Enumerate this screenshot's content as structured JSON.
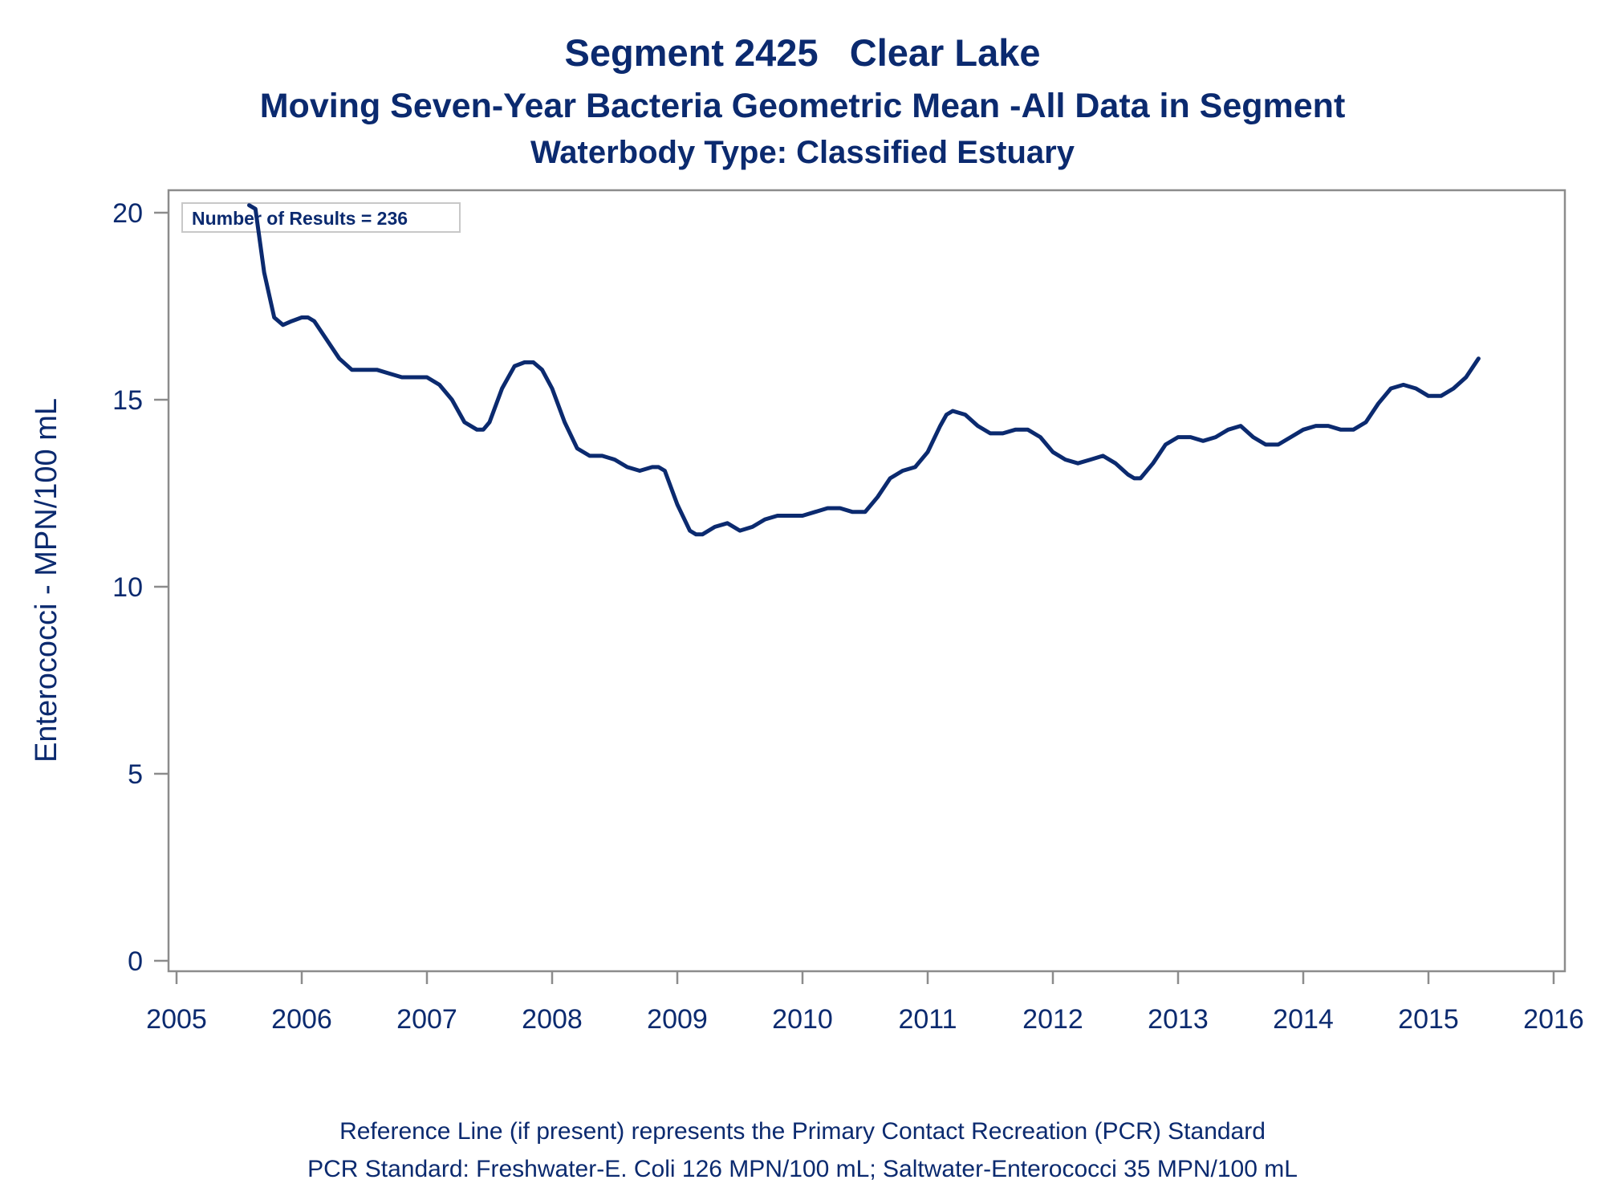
{
  "titles": {
    "line1": "Segment 2425   Clear Lake",
    "line2": "Moving Seven-Year Bacteria Geometric Mean -All Data in Segment",
    "line3": "Waterbody Type: Classified Estuary"
  },
  "annotation": "Number of Results = 236",
  "footnotes": {
    "line1": "Reference Line (if present) represents the Primary Contact Recreation (PCR) Standard",
    "line2": "PCR Standard: Freshwater-E. Coli 126 MPN/100 mL; Saltwater-Enterococci 35 MPN/100 mL"
  },
  "colors": {
    "line": "#0b2a6f",
    "axis": "#8c8c8c",
    "text": "#0b2a6f"
  },
  "chart_data": {
    "type": "line",
    "title": "Segment 2425   Clear Lake",
    "subtitle": "Moving Seven-Year Bacteria Geometric Mean -All Data in Segment",
    "xlabel": "",
    "ylabel": "Enterococci - MPN/100 mL",
    "xlim": [
      2005,
      2016
    ],
    "ylim": [
      0,
      20
    ],
    "x_ticks": [
      "2005",
      "2006",
      "2007",
      "2008",
      "2009",
      "2010",
      "2011",
      "2012",
      "2013",
      "2014",
      "2015",
      "2016"
    ],
    "y_ticks": [
      "0",
      "5",
      "10",
      "15",
      "20"
    ],
    "grid": false,
    "series": [
      {
        "x": [
          2005.58,
          2005.63,
          2005.7,
          2005.78,
          2005.85,
          2005.92,
          2006.0,
          2006.05,
          2006.1,
          2006.2,
          2006.3,
          2006.4,
          2006.5,
          2006.6,
          2006.7,
          2006.8,
          2006.9,
          2007.0,
          2007.1,
          2007.2,
          2007.3,
          2007.4,
          2007.45,
          2007.5,
          2007.6,
          2007.7,
          2007.78,
          2007.85,
          2007.92,
          2008.0,
          2008.1,
          2008.2,
          2008.3,
          2008.4,
          2008.5,
          2008.6,
          2008.7,
          2008.8,
          2008.85,
          2008.9,
          2009.0,
          2009.1,
          2009.15,
          2009.2,
          2009.3,
          2009.4,
          2009.5,
          2009.6,
          2009.7,
          2009.8,
          2009.9,
          2010.0,
          2010.1,
          2010.2,
          2010.3,
          2010.4,
          2010.5,
          2010.6,
          2010.7,
          2010.8,
          2010.9,
          2011.0,
          2011.1,
          2011.15,
          2011.2,
          2011.3,
          2011.4,
          2011.5,
          2011.6,
          2011.7,
          2011.8,
          2011.9,
          2012.0,
          2012.1,
          2012.2,
          2012.3,
          2012.4,
          2012.5,
          2012.6,
          2012.65,
          2012.7,
          2012.8,
          2012.9,
          2013.0,
          2013.1,
          2013.2,
          2013.3,
          2013.4,
          2013.5,
          2013.6,
          2013.7,
          2013.8,
          2013.9,
          2014.0,
          2014.1,
          2014.2,
          2014.3,
          2014.4,
          2014.5,
          2014.6,
          2014.7,
          2014.8,
          2014.9,
          2015.0,
          2015.1,
          2015.2,
          2015.3,
          2015.4
        ],
        "values": [
          20.2,
          20.1,
          18.4,
          17.2,
          17.0,
          17.1,
          17.2,
          17.2,
          17.1,
          16.6,
          16.1,
          15.8,
          15.8,
          15.8,
          15.7,
          15.6,
          15.6,
          15.6,
          15.4,
          15.0,
          14.4,
          14.2,
          14.2,
          14.4,
          15.3,
          15.9,
          16.0,
          16.0,
          15.8,
          15.3,
          14.4,
          13.7,
          13.5,
          13.5,
          13.4,
          13.2,
          13.1,
          13.2,
          13.2,
          13.1,
          12.2,
          11.5,
          11.4,
          11.4,
          11.6,
          11.7,
          11.5,
          11.6,
          11.8,
          11.9,
          11.9,
          11.9,
          12.0,
          12.1,
          12.1,
          12.0,
          12.0,
          12.4,
          12.9,
          13.1,
          13.2,
          13.6,
          14.3,
          14.6,
          14.7,
          14.6,
          14.3,
          14.1,
          14.1,
          14.2,
          14.2,
          14.0,
          13.6,
          13.4,
          13.3,
          13.4,
          13.5,
          13.3,
          13.0,
          12.9,
          12.9,
          13.3,
          13.8,
          14.0,
          14.0,
          13.9,
          14.0,
          14.2,
          14.3,
          14.0,
          13.8,
          13.8,
          14.0,
          14.2,
          14.3,
          14.3,
          14.2,
          14.2,
          14.4,
          14.9,
          15.3,
          15.4,
          15.3,
          15.1,
          15.1,
          15.3,
          15.6,
          16.1
        ]
      }
    ]
  }
}
